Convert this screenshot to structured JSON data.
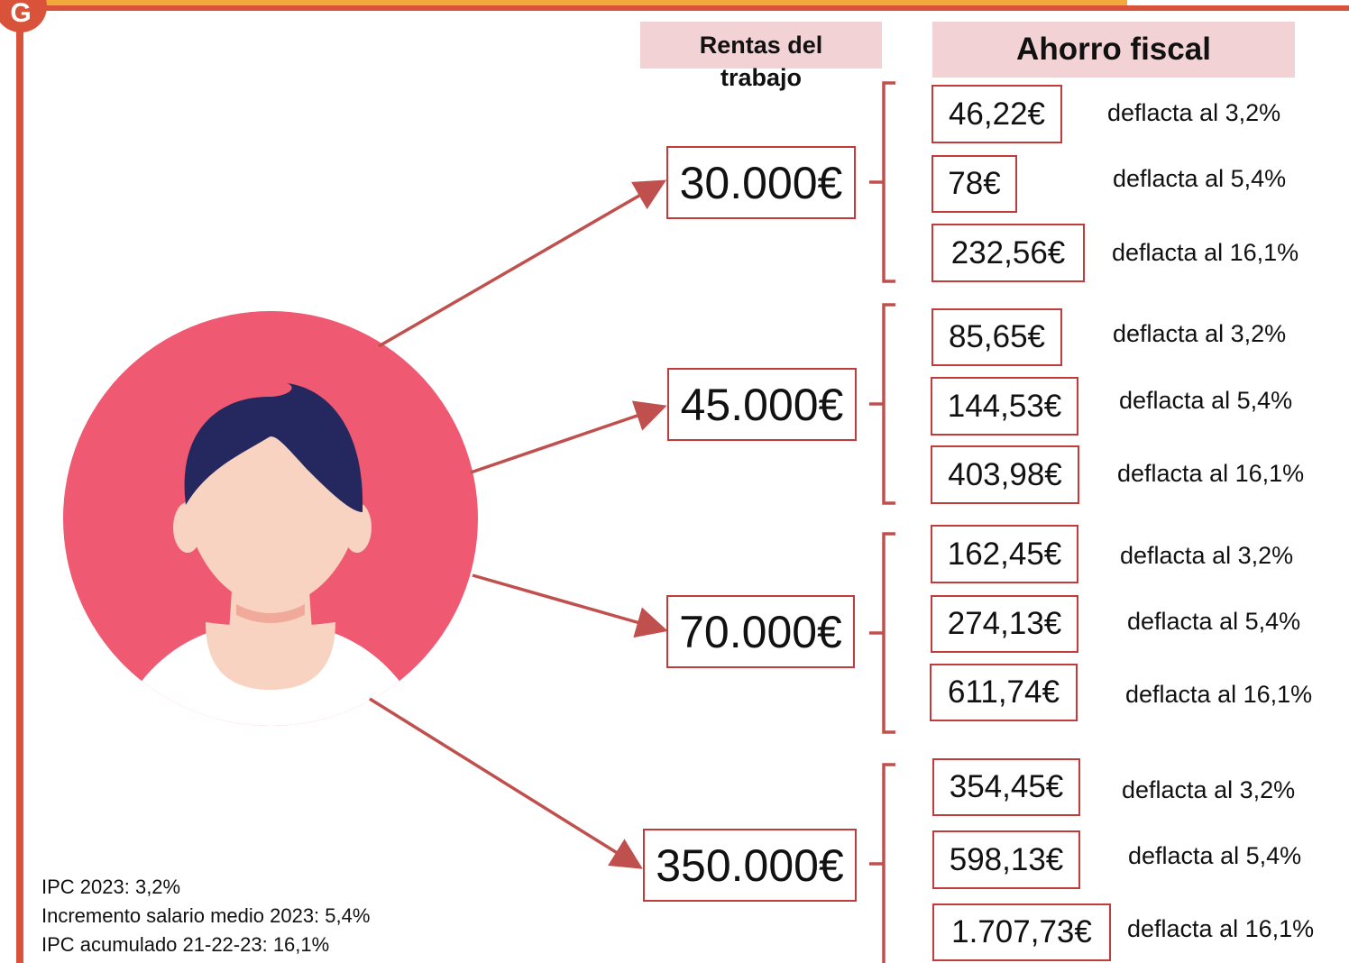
{
  "logo": {
    "glyph": "G"
  },
  "headers": {
    "rentas": "Rentas del trabajo",
    "ahorro": "Ahorro fiscal"
  },
  "groups": [
    {
      "income": "30.000€",
      "savings": [
        {
          "value": "46,22€",
          "note": "deflacta al 3,2%"
        },
        {
          "value": "78€",
          "note": "deflacta al 5,4%"
        },
        {
          "value": "232,56€",
          "note": "deflacta al 16,1%"
        }
      ]
    },
    {
      "income": "45.000€",
      "savings": [
        {
          "value": "85,65€",
          "note": "deflacta al 3,2%"
        },
        {
          "value": "144,53€",
          "note": "deflacta al 5,4%"
        },
        {
          "value": "403,98€",
          "note": "deflacta al 16,1%"
        }
      ]
    },
    {
      "income": "70.000€",
      "savings": [
        {
          "value": "162,45€",
          "note": "deflacta al 3,2%"
        },
        {
          "value": "274,13€",
          "note": "deflacta al 5,4%"
        },
        {
          "value": "611,74€",
          "note": "deflacta al 16,1%"
        }
      ]
    },
    {
      "income": "350.000€",
      "savings": [
        {
          "value": "354,45€",
          "note": "deflacta al 3,2%"
        },
        {
          "value": "598,13€",
          "note": "deflacta al 5,4%"
        },
        {
          "value": "1.707,73€",
          "note": "deflacta al 16,1%"
        }
      ]
    }
  ],
  "footnotes": [
    "IPC 2023: 3,2%",
    "Incremento salario medio 2023: 5,4%",
    "IPC acumulado 21-22-23: 16,1%"
  ],
  "colors": {
    "accent_red": "#d9523a",
    "arrow_red": "#c0504d",
    "box_border": "#c23b3b",
    "header_pink": "#f2d2d4",
    "avatar_circle": "#ef5a72",
    "hair": "#25285e",
    "skin": "#f8d3c1"
  }
}
